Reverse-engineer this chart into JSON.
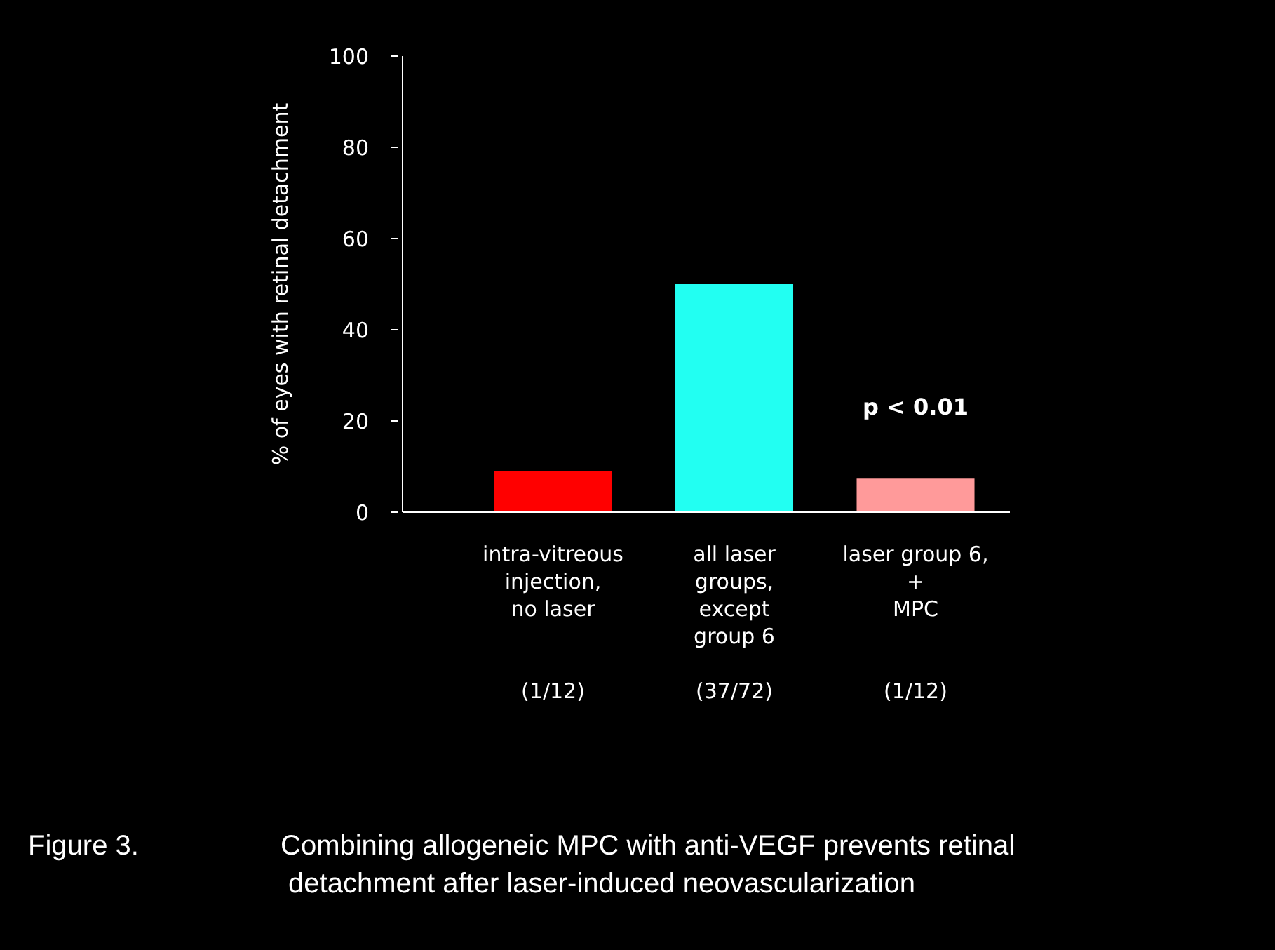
{
  "chart_data": {
    "type": "bar",
    "title": "Figure 3.",
    "subtitle": "Combining allogeneic MPC with anti-VEGF prevents retinal\n detachment after laser-induced neovascularization",
    "ylabel": "% of eyes with retinal detachment",
    "categories": [
      "intra-vitreous\ninjection,\nno laser\n\n\n(1/12)",
      "all laser\ngroups,\nexcept\ngroup 6\n\n(37/72)",
      "laser group 6,\n+\nMPC\n\n\n(1/12)"
    ],
    "values": [
      9,
      50,
      7.5
    ],
    "colors": [
      "#ff0000",
      "#22fff2",
      "#ff9a9a"
    ],
    "ylim": [
      0,
      100
    ],
    "yticks": [
      0,
      20,
      40,
      60,
      80,
      100
    ],
    "grid": false,
    "annotations": [
      "p < 0.01"
    ]
  }
}
